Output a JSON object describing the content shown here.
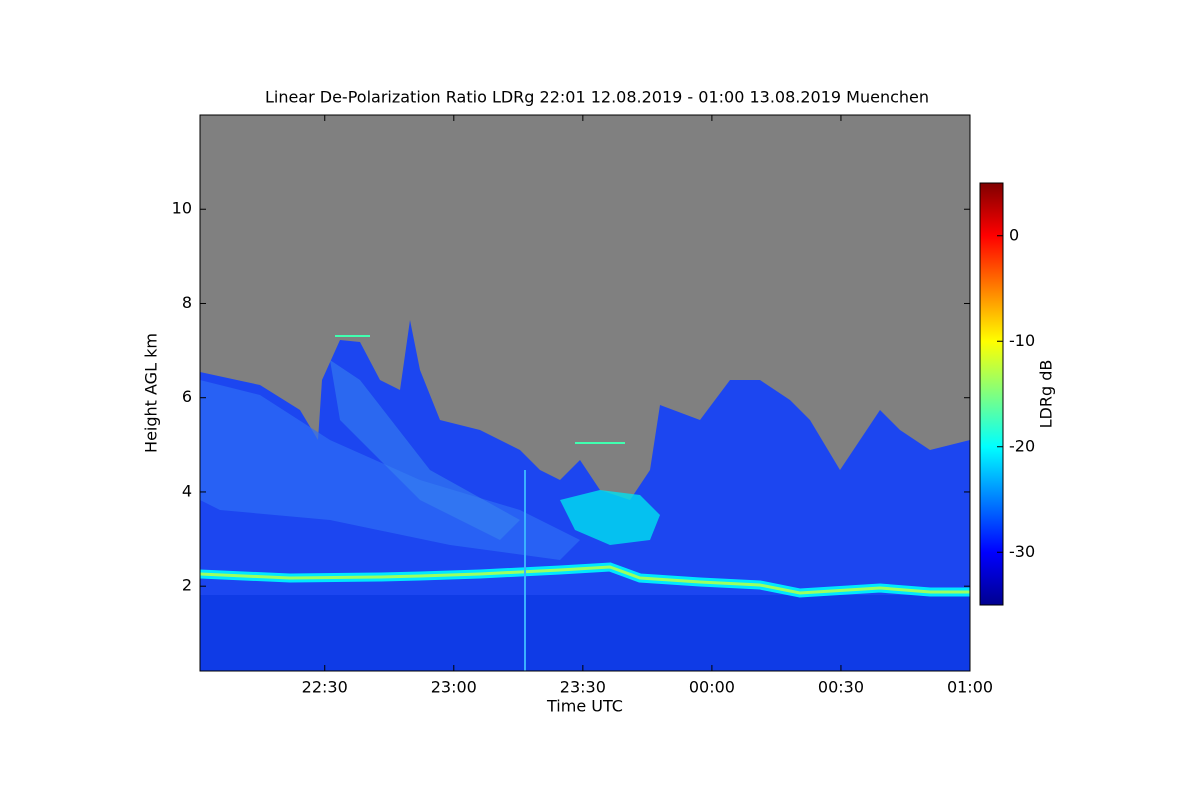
{
  "chart_data": {
    "type": "heatmap",
    "title": "Linear De-Polarization Ratio LDRg   22:01 12.08.2019 - 01:00 13.08.2019 Muenchen",
    "x_label": "Time UTC",
    "y_label": "Height AGL km",
    "colorbar_label": "LDRg dB",
    "xlim": [
      22.0167,
      25
    ],
    "xticks": [
      {
        "value": 22.5,
        "label": "22:30"
      },
      {
        "value": 23,
        "label": "23:00"
      },
      {
        "value": 23.5,
        "label": "23:30"
      },
      {
        "value": 24,
        "label": "00:00"
      },
      {
        "value": 24.5,
        "label": "00:30"
      },
      {
        "value": 25,
        "label": "01:00"
      }
    ],
    "ylim": [
      0.2,
      12
    ],
    "yticks": [
      2,
      4,
      6,
      8,
      10
    ],
    "clim": [
      -35,
      5
    ],
    "cticks": [
      -30,
      -20,
      -10,
      0
    ]
  }
}
